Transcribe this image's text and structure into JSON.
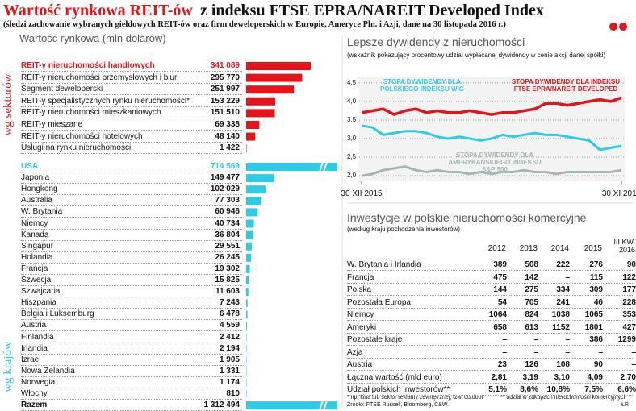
{
  "header": {
    "title": [
      "Wartość rynkowa REIT-ów",
      "z indeksu FTSE EPRA/NAREIT  Developed Index"
    ],
    "subtitle": "(śledzi zachowanie wybranych giełdowych REIT-ów oraz firm deweloperskich w Europie, Ameryce Pln. i Azji, dane na 30 listopada 2016 r.)"
  },
  "chart_data": [
    {
      "type": "hbar",
      "title": "Wartość rynkowa (mln dolarów)",
      "group_label": "wg sektorów",
      "color": "#e3151a",
      "categories": [
        "REIT-y nieruchomości handlowych",
        "REIT-y nieruchomości przemysłowych i biur",
        "Segment deweloperski",
        "REIT-y specjalistycznych rynku nieruchomości*",
        "REIT-y nieruchomości mieszkaniowych",
        "REIT-y mieszane",
        "REIT-y nieruchomości hotelowych",
        "Usługi na rynku nieruchomości"
      ],
      "values": [
        341089,
        295770,
        251997,
        153229,
        151510,
        69338,
        48140,
        1422
      ],
      "value_labels": [
        "341 089",
        "295 770",
        "251 997",
        "153 229",
        "151 510",
        "69 338",
        "48 140",
        "1 422"
      ]
    },
    {
      "type": "hbar",
      "group_label": "wg krajów",
      "color": "#2dcbe6",
      "categories": [
        "USA",
        "Japonia",
        "Hongkong",
        "Australia",
        "W. Brytania",
        "Niemcy",
        "Kanada",
        "Singapur",
        "Holandia",
        "Francja",
        "Szwecja",
        "Szwajcaria",
        "Hiszpania",
        "Belgia i Luksemburg",
        "Austria",
        "Finlandia",
        "Irlandia",
        "Izrael",
        "Nowa Zelandia",
        "Norwegia",
        "Włochy",
        "Razem"
      ],
      "values": [
        714569,
        149477,
        102029,
        77303,
        60946,
        40734,
        36804,
        29551,
        26245,
        19302,
        15825,
        11603,
        7243,
        6478,
        4559,
        2412,
        2194,
        1905,
        1331,
        1174,
        810,
        1312494
      ],
      "value_labels": [
        "714 569",
        "149 477",
        "102 029",
        "77 303",
        "60 946",
        "40 734",
        "36 804",
        "29 551",
        "26 245",
        "19 302",
        "15 825",
        "11 603",
        "7 243",
        "6 478",
        "4 559",
        "2 412",
        "2 194",
        "1 905",
        "1 331",
        "1 174",
        "810",
        "1 312 494"
      ]
    },
    {
      "type": "line",
      "title": "Lepsze dywidendy z nieruchomości",
      "subtitle": "(wskaźnik pokazujący procentowy udział wypłacanej dywidendy w cenie akcji danej spółki)",
      "categories": [
        "30 XII 2015",
        null,
        null,
        null,
        null,
        null,
        null,
        null,
        null,
        null,
        null,
        null,
        null,
        null,
        null,
        null,
        null,
        null,
        null,
        null,
        null,
        null,
        null,
        null,
        "30 XI 2016"
      ],
      "ylim": [
        1.85,
        4.65
      ],
      "yticks": [
        {
          "value": 2.0,
          "label": "2,0"
        },
        {
          "value": 2.5,
          "label": "2,5"
        },
        {
          "value": 3.0,
          "label": "3,0"
        },
        {
          "value": 3.5,
          "label": "3,5"
        },
        {
          "value": 4.0,
          "label": "4,0"
        },
        {
          "value": 4.5,
          "label": "4,5"
        }
      ],
      "grid": true,
      "series": [
        {
          "name": "STOPA DYWIDENDY DLA INDEKSU FTSE EPRA/NAREIT DEVELOPED",
          "color": "#e3151a",
          "values": [
            3.7,
            3.75,
            3.8,
            3.65,
            3.75,
            3.8,
            3.7,
            3.75,
            3.7,
            3.7,
            3.75,
            3.7,
            3.65,
            3.7,
            3.7,
            3.75,
            3.8,
            3.95,
            3.95,
            3.9,
            3.95,
            4.0,
            4.05,
            4.0,
            4.1
          ]
        },
        {
          "name": "STOPA DYWIDENDY DLA POLSKIEGO INDEKSU WIG",
          "color": "#2dcbe6",
          "values": [
            3.35,
            3.3,
            3.1,
            3.15,
            3.2,
            3.2,
            3.15,
            3.05,
            3.0,
            3.05,
            3.0,
            2.95,
            3.0,
            3.1,
            3.05,
            3.1,
            3.15,
            3.1,
            3.1,
            3.05,
            3.0,
            2.95,
            2.7,
            2.75,
            2.8
          ]
        },
        {
          "name": "STOPA DYWIDENDY DLA AMERYKAŃSKIEGO INDEKSU S&P 500",
          "color": "#a7b4b4",
          "values": [
            2.0,
            2.05,
            2.15,
            2.2,
            2.25,
            2.15,
            2.1,
            2.15,
            2.1,
            2.1,
            2.05,
            2.1,
            2.05,
            2.1,
            2.1,
            2.15,
            2.1,
            2.1,
            2.05,
            2.1,
            2.1,
            2.1,
            2.1,
            2.1,
            2.15
          ]
        }
      ]
    }
  ],
  "table": {
    "title": "Inwestycje w polskie nieruchomości komercyjne",
    "subtitle": "(według kraju pochodzenia inwestorów)",
    "columns": [
      "2012",
      "2013",
      "2014",
      "2015",
      "III KW. 2016"
    ],
    "rows": [
      {
        "label": "W. Brytania i Irlandia",
        "cells": [
          "389",
          "508",
          "222",
          "276",
          "90"
        ]
      },
      {
        "label": "Francja",
        "cells": [
          "475",
          "142",
          "–",
          "115",
          "122"
        ]
      },
      {
        "label": "Polska",
        "cells": [
          "144",
          "275",
          "334",
          "309",
          "177"
        ]
      },
      {
        "label": "Pozostała Europa",
        "cells": [
          "54",
          "705",
          "241",
          "46",
          "228"
        ]
      },
      {
        "label": "Niemcy",
        "cells": [
          "1064",
          "824",
          "1038",
          "1065",
          "353"
        ]
      },
      {
        "label": "Ameryki",
        "cells": [
          "658",
          "613",
          "1152",
          "1801",
          "427"
        ]
      },
      {
        "label": "Pozostałe kraje",
        "cells": [
          "–",
          "–",
          "–",
          "386",
          "1299"
        ]
      },
      {
        "label": "Azja",
        "cells": [
          "–",
          "–",
          "–",
          "–",
          "–"
        ]
      },
      {
        "label": "Austria",
        "cells": [
          "23",
          "126",
          "108",
          "90",
          "–"
        ]
      },
      {
        "label": "Łączna wartość (mld euro)",
        "cells": [
          "2,81",
          "3,19",
          "3,10",
          "4,09",
          "2,70"
        ]
      },
      {
        "label": "Udział polskich inwestorów**",
        "cells": [
          "5,1%",
          "8,6%",
          "10,8%",
          "7,5%",
          "6,6%"
        ]
      }
    ]
  },
  "footnotes": [
    "* np. kina lub sektor reklamy zewnętrznej, tzw. outdoor",
    "** udział w zakupach nieruchomości komercyjnych",
    "Źródło: FTSE Russell, Bloomberg, C&W.",
    "ŁR"
  ]
}
